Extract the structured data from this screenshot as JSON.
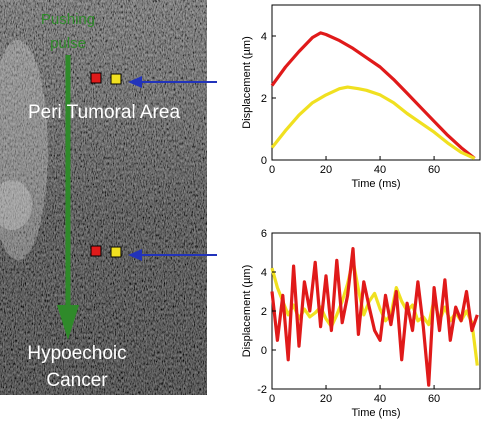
{
  "image_panel": {
    "pushing_label_line1": "Pushing",
    "pushing_label_line2": "pulse",
    "region_top_label": "Peri Tumoral Area",
    "region_bottom_label_line1": "Hypoechoic",
    "region_bottom_label_line2": "Cancer",
    "colors": {
      "pulse": "#2f8a2a",
      "arrow": "#2233bb",
      "marker_red": "#e01a1a",
      "marker_yellow": "#f0e020"
    }
  },
  "chart_data": [
    {
      "type": "line",
      "title": "",
      "xlabel": "Time (ms)",
      "ylabel": "Displacement (µm)",
      "xlim": [
        0,
        77
      ],
      "ylim": [
        0,
        5
      ],
      "xticks": [
        0,
        20,
        40,
        60
      ],
      "yticks": [
        0,
        2,
        4
      ],
      "grid": false,
      "series": [
        {
          "color": "#e01a1a",
          "x": [
            0,
            5,
            10,
            15,
            18,
            20,
            25,
            30,
            35,
            40,
            45,
            50,
            55,
            60,
            65,
            70,
            75
          ],
          "values": [
            2.4,
            3.0,
            3.5,
            3.95,
            4.1,
            4.05,
            3.85,
            3.6,
            3.3,
            3.0,
            2.6,
            2.15,
            1.7,
            1.25,
            0.8,
            0.4,
            0.05
          ]
        },
        {
          "color": "#f0e020",
          "x": [
            0,
            5,
            10,
            15,
            20,
            25,
            28,
            32,
            35,
            40,
            45,
            50,
            55,
            60,
            65,
            70,
            75
          ],
          "values": [
            0.4,
            0.95,
            1.45,
            1.85,
            2.1,
            2.3,
            2.35,
            2.3,
            2.25,
            2.1,
            1.85,
            1.5,
            1.2,
            0.9,
            0.55,
            0.25,
            0.05
          ]
        }
      ]
    },
    {
      "type": "line",
      "title": "",
      "xlabel": "Time (ms)",
      "ylabel": "Displacement (µm)",
      "xlim": [
        0,
        77
      ],
      "ylim": [
        -2,
        6
      ],
      "xticks": [
        0,
        20,
        40,
        60
      ],
      "yticks": [
        -2,
        0,
        2,
        4,
        6
      ],
      "grid": false,
      "series": [
        {
          "color": "#f0e020",
          "x": [
            0,
            2,
            4,
            6,
            8,
            10,
            12,
            14,
            16,
            18,
            20,
            22,
            24,
            26,
            28,
            30,
            32,
            34,
            36,
            38,
            40,
            42,
            44,
            46,
            48,
            50,
            52,
            54,
            56,
            58,
            60,
            62,
            64,
            66,
            68,
            70,
            72,
            74,
            76
          ],
          "values": [
            4.2,
            3.2,
            2.5,
            1.8,
            2.3,
            1.6,
            2.1,
            1.7,
            1.9,
            2.2,
            1.6,
            1.2,
            1.8,
            2.5,
            3.4,
            4.6,
            3.1,
            1.8,
            2.5,
            2.9,
            2.1,
            1.5,
            1.8,
            3.2,
            2.5,
            2.0,
            2.3,
            1.5,
            1.7,
            1.3,
            2.6,
            1.5,
            2.2,
            1.5,
            1.9,
            1.5,
            2.0,
            1.4,
            -0.8
          ]
        },
        {
          "color": "#e01a1a",
          "x": [
            0,
            2,
            4,
            6,
            8,
            10,
            12,
            14,
            16,
            18,
            20,
            22,
            24,
            26,
            28,
            30,
            32,
            34,
            36,
            38,
            40,
            42,
            44,
            46,
            48,
            50,
            52,
            54,
            56,
            58,
            60,
            62,
            64,
            66,
            68,
            70,
            72,
            74,
            76
          ],
          "values": [
            3.0,
            0.5,
            2.8,
            -0.5,
            4.3,
            0.2,
            3.5,
            2.0,
            4.5,
            1.2,
            3.8,
            1.0,
            4.6,
            1.4,
            2.8,
            5.2,
            0.8,
            3.5,
            2.2,
            1.0,
            0.5,
            2.8,
            1.3,
            3.0,
            -0.5,
            2.4,
            1.0,
            3.5,
            1.2,
            -1.8,
            3.2,
            1.0,
            3.6,
            0.5,
            2.2,
            1.5,
            3.0,
            1.0,
            1.8
          ]
        }
      ]
    }
  ]
}
